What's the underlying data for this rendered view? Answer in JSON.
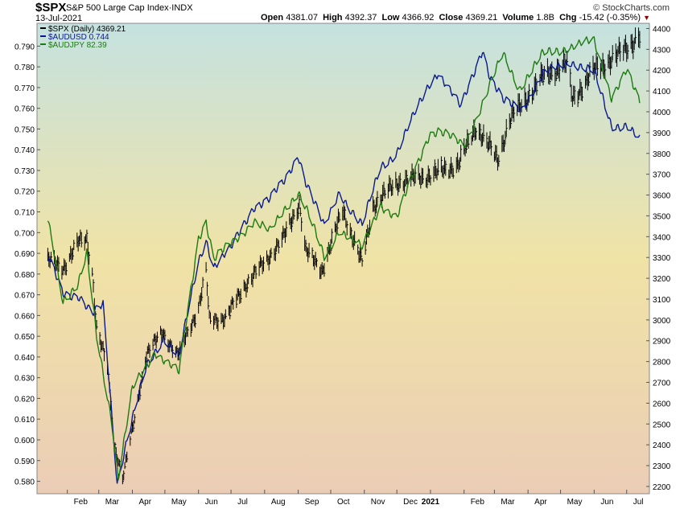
{
  "header": {
    "symbol": "$SPX",
    "name": "S&P 500 Large Cap Index",
    "exchange": "INDX",
    "date": "13-Jul-2021",
    "logo": "© StockCharts.com",
    "open_label": "Open",
    "open": "4381.07",
    "high_label": "High",
    "high": "4392.37",
    "low_label": "Low",
    "low": "4366.92",
    "close_label": "Close",
    "close": "4369.21",
    "volume_label": "Volume",
    "volume": "1.8B",
    "chg_label": "Chg",
    "chg": "-15.42 (-0.35%)"
  },
  "legend": [
    {
      "label": "$SPX (Daily) 4369.21",
      "color": "#000000"
    },
    {
      "label": "$AUDUSD 0.744",
      "color": "#0a1a8c"
    },
    {
      "label": "$AUDJPY 82.39",
      "color": "#1e7a12"
    }
  ],
  "colors": {
    "background_top": "#c5e2e0",
    "background_mid": "#f0e3a6",
    "background_bottom": "#ebcdb6",
    "audusd": "#0a1a8c",
    "audjpy": "#1e7a12",
    "spx": "#000000"
  },
  "chart_data": {
    "type": "line",
    "x_tick_labels": [
      "Feb",
      "Mar",
      "Apr",
      "May",
      "Jun",
      "Jul",
      "Aug",
      "Sep",
      "Oct",
      "Nov",
      "Dec",
      "2021",
      "Feb",
      "Mar",
      "Apr",
      "May",
      "Jun",
      "Jul"
    ],
    "x_tick_positions": [
      "2020-02",
      "2020-03",
      "2020-04",
      "2020-05",
      "2020-06",
      "2020-07",
      "2020-08",
      "2020-09",
      "2020-10",
      "2020-11",
      "2020-12",
      "2021-01",
      "2021-02",
      "2021-03",
      "2021-04",
      "2021-05",
      "2021-06",
      "2021-07"
    ],
    "left_axis": {
      "ylim": [
        0.574,
        0.801
      ],
      "ticks": [
        "0.580",
        "0.590",
        "0.600",
        "0.610",
        "0.620",
        "0.630",
        "0.640",
        "0.650",
        "0.660",
        "0.670",
        "0.680",
        "0.690",
        "0.700",
        "0.710",
        "0.720",
        "0.730",
        "0.740",
        "0.750",
        "0.760",
        "0.770",
        "0.780",
        "0.790"
      ]
    },
    "right_axis": {
      "ylim": [
        2165,
        4425
      ],
      "ticks": [
        "2200",
        "2300",
        "2400",
        "2500",
        "2600",
        "2700",
        "2800",
        "2900",
        "3000",
        "3100",
        "3200",
        "3300",
        "3400",
        "3500",
        "3600",
        "3700",
        "3800",
        "3900",
        "4000",
        "4100",
        "4200",
        "4300",
        "4400"
      ]
    },
    "grid": false,
    "legend_position": "top-left",
    "series": [
      {
        "name": "$SPX",
        "axis": "right",
        "style": "ohlc",
        "x": [
          "2020-01-14",
          "2020-01-28",
          "2020-02-11",
          "2020-02-19",
          "2020-02-24",
          "2020-02-28",
          "2020-03-09",
          "2020-03-16",
          "2020-03-23",
          "2020-04-01",
          "2020-04-14",
          "2020-04-29",
          "2020-05-13",
          "2020-06-01",
          "2020-06-08",
          "2020-06-11",
          "2020-06-26",
          "2020-07-13",
          "2020-08-03",
          "2020-08-18",
          "2020-09-02",
          "2020-09-08",
          "2020-09-23",
          "2020-10-12",
          "2020-10-30",
          "2020-11-09",
          "2020-12-01",
          "2021-01-04",
          "2021-01-27",
          "2021-02-12",
          "2021-03-04",
          "2021-03-15",
          "2021-04-15",
          "2021-05-07",
          "2021-05-12",
          "2021-06-01",
          "2021-06-25",
          "2021-07-13"
        ],
        "values": [
          3290,
          3250,
          3370,
          3390,
          3230,
          2960,
          2770,
          2390,
          2240,
          2470,
          2840,
          2940,
          2830,
          3060,
          3230,
          3000,
          3010,
          3160,
          3290,
          3390,
          3560,
          3330,
          3240,
          3530,
          3270,
          3550,
          3660,
          3700,
          3750,
          3930,
          3770,
          3960,
          4170,
          4230,
          4060,
          4200,
          4280,
          4369
        ]
      },
      {
        "name": "$AUDUSD",
        "axis": "left",
        "style": "line",
        "x": [
          "2020-01-14",
          "2020-01-28",
          "2020-02-11",
          "2020-02-24",
          "2020-03-05",
          "2020-03-18",
          "2020-03-26",
          "2020-04-14",
          "2020-04-30",
          "2020-05-14",
          "2020-06-01",
          "2020-06-08",
          "2020-06-15",
          "2020-07-01",
          "2020-07-22",
          "2020-08-06",
          "2020-08-20",
          "2020-09-01",
          "2020-09-08",
          "2020-09-25",
          "2020-10-09",
          "2020-10-30",
          "2020-11-16",
          "2020-12-01",
          "2020-12-31",
          "2021-01-08",
          "2021-01-29",
          "2021-02-18",
          "2021-02-25",
          "2021-03-09",
          "2021-03-26",
          "2021-04-15",
          "2021-05-10",
          "2021-06-01",
          "2021-06-17",
          "2021-07-01",
          "2021-07-13"
        ],
        "values": [
          0.688,
          0.671,
          0.67,
          0.66,
          0.665,
          0.58,
          0.598,
          0.635,
          0.65,
          0.64,
          0.686,
          0.697,
          0.684,
          0.692,
          0.713,
          0.716,
          0.725,
          0.738,
          0.725,
          0.702,
          0.72,
          0.703,
          0.732,
          0.739,
          0.772,
          0.778,
          0.76,
          0.789,
          0.775,
          0.763,
          0.76,
          0.776,
          0.783,
          0.777,
          0.752,
          0.752,
          0.744
        ]
      },
      {
        "name": "$AUDJPY",
        "axis": "left",
        "style": "line",
        "x": [
          "2020-01-14",
          "2020-01-28",
          "2020-02-11",
          "2020-02-19",
          "2020-02-28",
          "2020-03-13",
          "2020-03-19",
          "2020-04-01",
          "2020-04-22",
          "2020-05-14",
          "2020-06-01",
          "2020-06-08",
          "2020-06-15",
          "2020-07-01",
          "2020-07-22",
          "2020-08-06",
          "2020-08-20",
          "2020-09-01",
          "2020-09-08",
          "2020-09-25",
          "2020-10-09",
          "2020-10-30",
          "2020-11-16",
          "2020-12-01",
          "2020-12-31",
          "2021-01-08",
          "2021-02-01",
          "2021-02-25",
          "2021-03-09",
          "2021-03-24",
          "2021-04-15",
          "2021-05-10",
          "2021-06-01",
          "2021-06-17",
          "2021-07-01",
          "2021-07-13"
        ],
        "values": [
          0.706,
          0.668,
          0.675,
          0.689,
          0.65,
          0.61,
          0.582,
          0.624,
          0.643,
          0.632,
          0.698,
          0.706,
          0.687,
          0.694,
          0.706,
          0.7,
          0.712,
          0.72,
          0.712,
          0.688,
          0.702,
          0.692,
          0.714,
          0.707,
          0.748,
          0.749,
          0.742,
          0.771,
          0.786,
          0.77,
          0.786,
          0.79,
          0.792,
          0.766,
          0.778,
          0.762
        ]
      }
    ]
  }
}
